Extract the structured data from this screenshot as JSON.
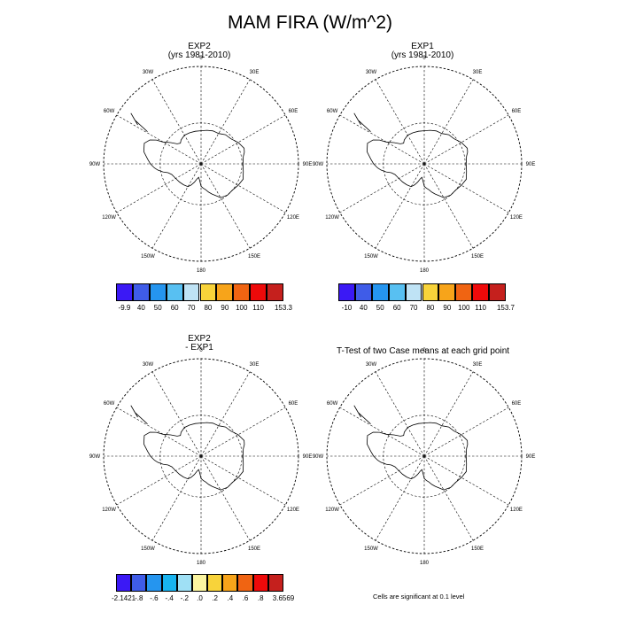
{
  "figure": {
    "title": "MAM FIRA (W/m^2)"
  },
  "panels": [
    {
      "id": "exp2",
      "title_line1": "EXP2",
      "title_line2": "(yrs 1981-2010)"
    },
    {
      "id": "exp1",
      "title_line1": "EXP1",
      "title_line2": "(yrs 1981-2010)"
    },
    {
      "id": "diff",
      "title_line1": "EXP2",
      "title_line2": "- EXP1"
    },
    {
      "id": "ttest",
      "title_line1": "T-Test of two Case means at each grid point",
      "title_line2": ""
    }
  ],
  "longitude_labels": [
    "0",
    "30E",
    "60E",
    "90E",
    "120E",
    "150E",
    "180",
    "150W",
    "120W",
    "90W",
    "60W",
    "30W"
  ],
  "colorbars": [
    {
      "id": "exp2-colorbar",
      "colors": [
        "#3b19f5",
        "#3f5ce8",
        "#2595ef",
        "#58c0f2",
        "#bfe3f5",
        "#f8d33a",
        "#f7a41a",
        "#f06412",
        "#ee0a0a",
        "#c5201d"
      ],
      "labels": [
        "-9.9",
        "40",
        "50",
        "60",
        "70",
        "80",
        "90",
        "100",
        "110",
        "153.3"
      ]
    },
    {
      "id": "exp1-colorbar",
      "colors": [
        "#3b19f5",
        "#3f5ce8",
        "#2595ef",
        "#58c0f2",
        "#bfe3f5",
        "#f8d33a",
        "#f7a41a",
        "#f06412",
        "#ee0a0a",
        "#c5201d"
      ],
      "labels": [
        "-10",
        "40",
        "50",
        "60",
        "70",
        "80",
        "90",
        "100",
        "110",
        "153.7"
      ]
    },
    {
      "id": "diff-colorbar",
      "colors": [
        "#3b19f5",
        "#3f5ce8",
        "#2595ef",
        "#18b4f0",
        "#9fe0f5",
        "#fbf5a0",
        "#f8d33a",
        "#f7a41a",
        "#f06412",
        "#ee0a0a",
        "#c5201d"
      ],
      "labels": [
        "-2.1421",
        "-.8",
        "-.6",
        "-.4",
        "-.2",
        ".0",
        ".2",
        ".4",
        ".6",
        ".8",
        "3.6569"
      ]
    }
  ],
  "footnote": "Cells are significant at 0.1 level"
}
